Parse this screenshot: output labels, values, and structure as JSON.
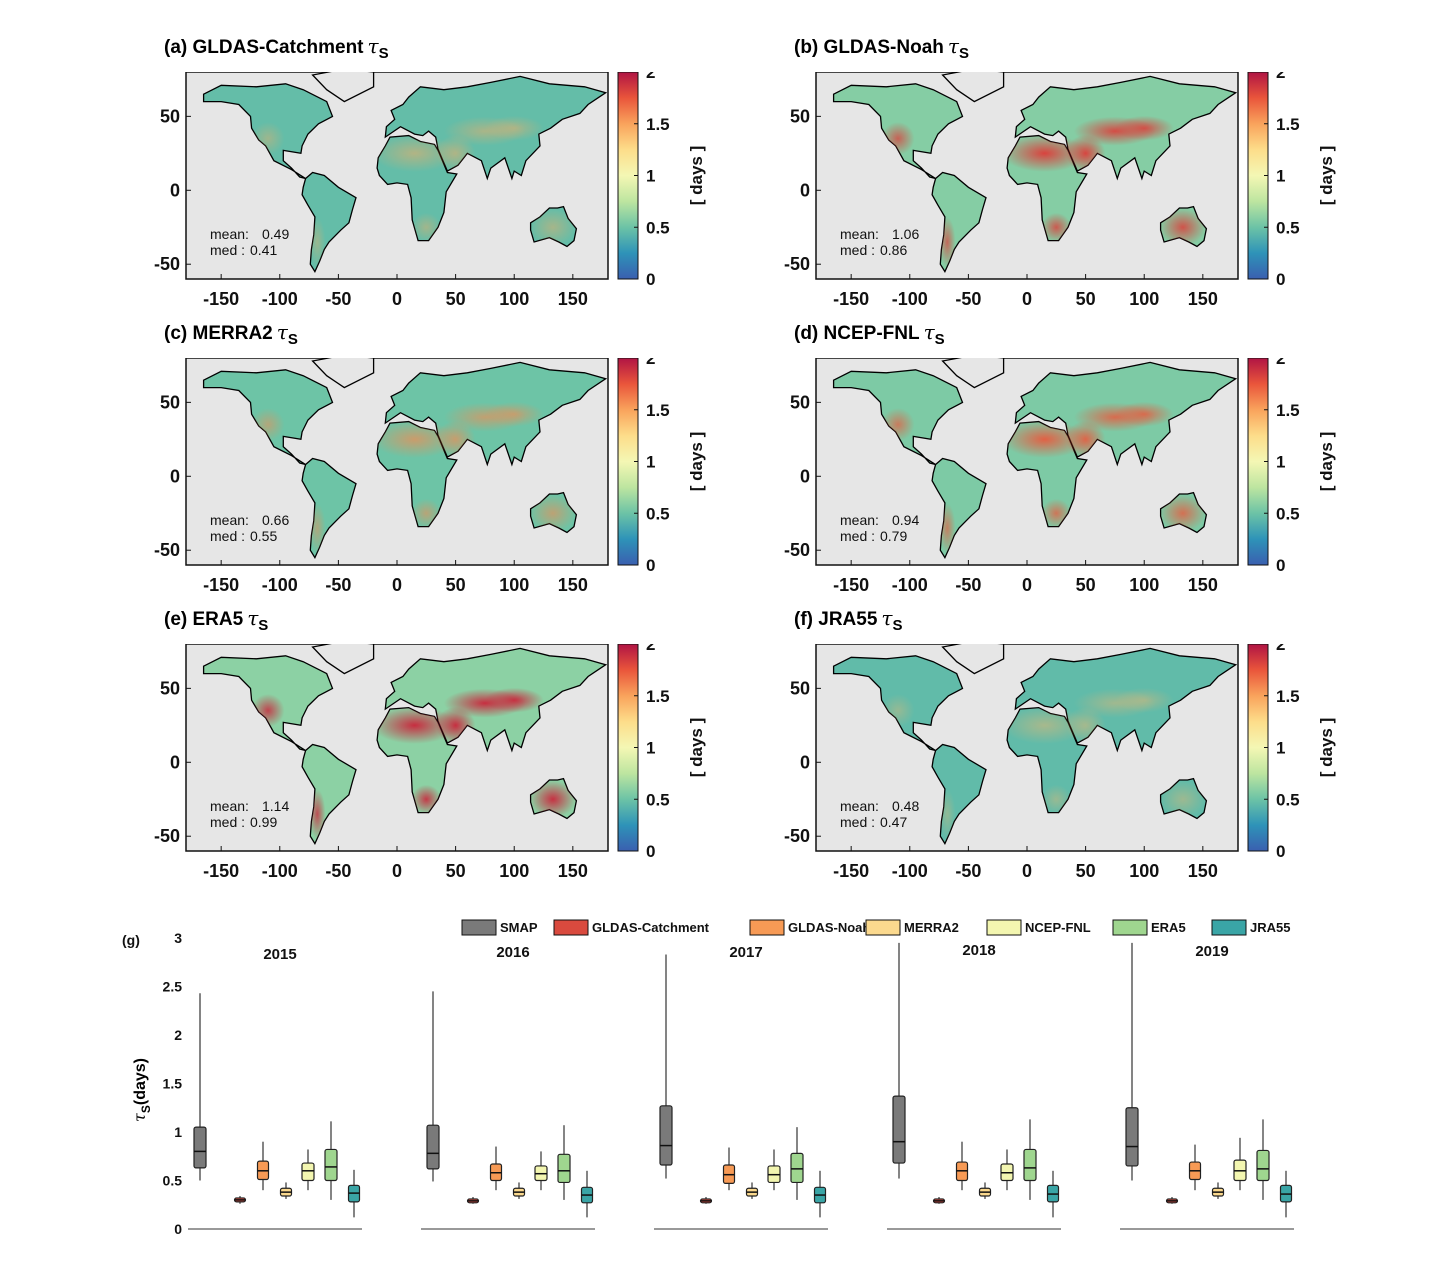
{
  "colorbar": {
    "label": "[ days ]",
    "ticks": [
      "2",
      "1.5",
      "1",
      "0.5",
      "0"
    ],
    "range": [
      0,
      2
    ],
    "colors": [
      "#3a5fb0",
      "#2e93b8",
      "#6cc3a6",
      "#bde5a0",
      "#f4f7b4",
      "#fddd8a",
      "#f9a35c",
      "#e9553b",
      "#b01444"
    ]
  },
  "map_axes": {
    "x_ticks": [
      "-150",
      "-100",
      "-50",
      "0",
      "50",
      "100",
      "150"
    ],
    "y_ticks": [
      "50",
      "0",
      "-50"
    ]
  },
  "maps": [
    {
      "label": "(a) GLDAS-Catchment",
      "symbol": "τ",
      "sub": "S",
      "mean_label": "mean:",
      "mean": "0.49",
      "med_label": "med :",
      "med": "0.41",
      "intensity": 0.45
    },
    {
      "label": "(b) GLDAS-Noah",
      "symbol": "τ",
      "sub": "S",
      "mean_label": "mean:",
      "mean": "1.06",
      "med_label": "med :",
      "med": "0.86",
      "intensity": 0.9
    },
    {
      "label": "(c) MERRA2",
      "symbol": "τ",
      "sub": "S",
      "mean_label": "mean:",
      "mean": "0.66",
      "med_label": "med :",
      "med": "0.55",
      "intensity": 0.6
    },
    {
      "label": "(d) NCEP-FNL",
      "symbol": "τ",
      "sub": "S",
      "mean_label": "mean:",
      "mean": "0.94",
      "med_label": "med :",
      "med": "0.79",
      "intensity": 0.8
    },
    {
      "label": "(e) ERA5",
      "symbol": "τ",
      "sub": "S",
      "mean_label": "mean:",
      "mean": "1.14",
      "med_label": "med :",
      "med": "0.99",
      "intensity": 1.0
    },
    {
      "label": "(f) JRA55",
      "symbol": "τ",
      "sub": "S",
      "mean_label": "mean:",
      "mean": "0.48",
      "med_label": "med :",
      "med": "0.47",
      "intensity": 0.4
    }
  ],
  "chart_data": {
    "type": "boxplot",
    "panel_label": "(g)",
    "ylabel_symbol": "τ",
    "ylabel_sub": "S",
    "ylabel_unit": "(days)",
    "ylim": [
      0,
      3
    ],
    "y_ticks": [
      "0",
      "0.5",
      "1",
      "1.5",
      "2",
      "2.5",
      "3"
    ],
    "legend": [
      {
        "name": "SMAP",
        "color": "#7a7a7a"
      },
      {
        "name": "GLDAS-Catchment",
        "color": "#d94a3e"
      },
      {
        "name": "GLDAS-Noah",
        "color": "#f79a55"
      },
      {
        "name": "MERRA2",
        "color": "#fbd98e"
      },
      {
        "name": "NCEP-FNL",
        "color": "#f3f6b0"
      },
      {
        "name": "ERA5",
        "color": "#9fd68f"
      },
      {
        "name": "JRA55",
        "color": "#3aa5a6"
      }
    ],
    "groups": [
      {
        "year": "2015",
        "boxes": [
          {
            "min": 0.5,
            "q1": 0.63,
            "median": 0.8,
            "q3": 1.05,
            "max": 2.43
          },
          {
            "min": 0.26,
            "q1": 0.28,
            "median": 0.3,
            "q3": 0.32,
            "max": 0.34
          },
          {
            "min": 0.4,
            "q1": 0.51,
            "median": 0.6,
            "q3": 0.7,
            "max": 0.9
          },
          {
            "min": 0.31,
            "q1": 0.34,
            "median": 0.38,
            "q3": 0.42,
            "max": 0.48
          },
          {
            "min": 0.4,
            "q1": 0.5,
            "median": 0.6,
            "q3": 0.68,
            "max": 0.82
          },
          {
            "min": 0.3,
            "q1": 0.5,
            "median": 0.64,
            "q3": 0.82,
            "max": 1.11
          },
          {
            "min": 0.12,
            "q1": 0.28,
            "median": 0.37,
            "q3": 0.45,
            "max": 0.61
          }
        ]
      },
      {
        "year": "2016",
        "boxes": [
          {
            "min": 0.49,
            "q1": 0.62,
            "median": 0.78,
            "q3": 1.07,
            "max": 2.45
          },
          {
            "min": 0.26,
            "q1": 0.27,
            "median": 0.29,
            "q3": 0.31,
            "max": 0.33
          },
          {
            "min": 0.4,
            "q1": 0.5,
            "median": 0.58,
            "q3": 0.67,
            "max": 0.85
          },
          {
            "min": 0.31,
            "q1": 0.34,
            "median": 0.38,
            "q3": 0.42,
            "max": 0.48
          },
          {
            "min": 0.4,
            "q1": 0.5,
            "median": 0.57,
            "q3": 0.65,
            "max": 0.8
          },
          {
            "min": 0.3,
            "q1": 0.48,
            "median": 0.6,
            "q3": 0.77,
            "max": 1.07
          },
          {
            "min": 0.12,
            "q1": 0.27,
            "median": 0.35,
            "q3": 0.43,
            "max": 0.6
          }
        ]
      },
      {
        "year": "2017",
        "boxes": [
          {
            "min": 0.52,
            "q1": 0.66,
            "median": 0.86,
            "q3": 1.27,
            "max": 2.83
          },
          {
            "min": 0.26,
            "q1": 0.27,
            "median": 0.29,
            "q3": 0.31,
            "max": 0.33
          },
          {
            "min": 0.4,
            "q1": 0.47,
            "median": 0.56,
            "q3": 0.66,
            "max": 0.84
          },
          {
            "min": 0.31,
            "q1": 0.34,
            "median": 0.38,
            "q3": 0.42,
            "max": 0.48
          },
          {
            "min": 0.4,
            "q1": 0.48,
            "median": 0.56,
            "q3": 0.65,
            "max": 0.82
          },
          {
            "min": 0.3,
            "q1": 0.48,
            "median": 0.62,
            "q3": 0.78,
            "max": 1.05
          },
          {
            "min": 0.12,
            "q1": 0.27,
            "median": 0.35,
            "q3": 0.43,
            "max": 0.6
          }
        ]
      },
      {
        "year": "2018",
        "boxes": [
          {
            "min": 0.52,
            "q1": 0.68,
            "median": 0.9,
            "q3": 1.37,
            "max": 2.95
          },
          {
            "min": 0.26,
            "q1": 0.27,
            "median": 0.29,
            "q3": 0.31,
            "max": 0.33
          },
          {
            "min": 0.4,
            "q1": 0.5,
            "median": 0.6,
            "q3": 0.69,
            "max": 0.9
          },
          {
            "min": 0.31,
            "q1": 0.34,
            "median": 0.38,
            "q3": 0.42,
            "max": 0.48
          },
          {
            "min": 0.4,
            "q1": 0.5,
            "median": 0.58,
            "q3": 0.67,
            "max": 0.82
          },
          {
            "min": 0.3,
            "q1": 0.5,
            "median": 0.63,
            "q3": 0.82,
            "max": 1.13
          },
          {
            "min": 0.12,
            "q1": 0.28,
            "median": 0.36,
            "q3": 0.45,
            "max": 0.6
          }
        ]
      },
      {
        "year": "2019",
        "boxes": [
          {
            "min": 0.5,
            "q1": 0.65,
            "median": 0.85,
            "q3": 1.25,
            "max": 2.95
          },
          {
            "min": 0.26,
            "q1": 0.27,
            "median": 0.29,
            "q3": 0.31,
            "max": 0.33
          },
          {
            "min": 0.4,
            "q1": 0.51,
            "median": 0.6,
            "q3": 0.69,
            "max": 0.87
          },
          {
            "min": 0.31,
            "q1": 0.34,
            "median": 0.38,
            "q3": 0.42,
            "max": 0.48
          },
          {
            "min": 0.4,
            "q1": 0.5,
            "median": 0.6,
            "q3": 0.71,
            "max": 0.94
          },
          {
            "min": 0.3,
            "q1": 0.5,
            "median": 0.62,
            "q3": 0.81,
            "max": 1.13
          },
          {
            "min": 0.12,
            "q1": 0.28,
            "median": 0.36,
            "q3": 0.45,
            "max": 0.6
          }
        ]
      }
    ]
  }
}
